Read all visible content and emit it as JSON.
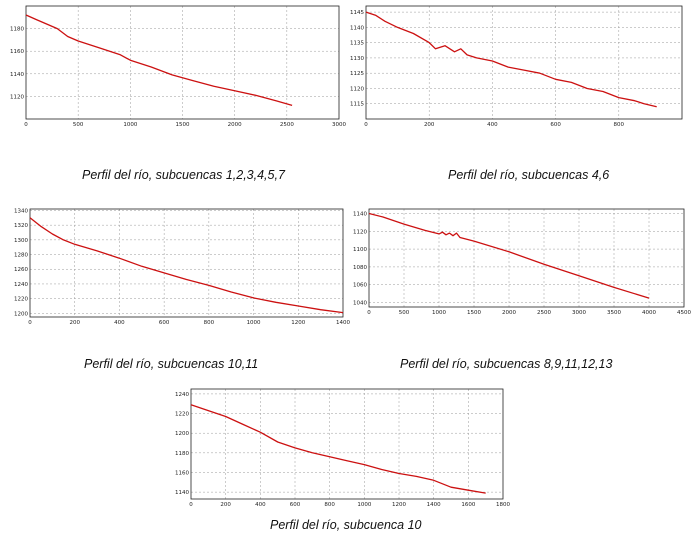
{
  "colors": {
    "line": "#cc1111",
    "grid": "#9a9a9a",
    "frame": "#222222",
    "background": "#ffffff"
  },
  "chart_data": [
    {
      "type": "line",
      "caption": "Perfil del río, subcuencas 1,2,3,4,5,7",
      "xlim": [
        0,
        3000
      ],
      "ylim": [
        1100,
        1200
      ],
      "x_ticks": [
        0,
        500,
        1000,
        1500,
        2000,
        2500,
        3000
      ],
      "y_ticks": [
        1120,
        1140,
        1160,
        1180
      ],
      "grid": true,
      "series": [
        {
          "x": [
            0,
            100,
            200,
            300,
            400,
            500,
            700,
            900,
            1000,
            1200,
            1400,
            1600,
            1800,
            2000,
            2200,
            2400,
            2550
          ],
          "y": [
            1192,
            1188,
            1184,
            1180,
            1173,
            1169,
            1163,
            1157,
            1152,
            1146,
            1139,
            1134,
            1129,
            1125,
            1121,
            1116,
            1112
          ]
        }
      ]
    },
    {
      "type": "line",
      "caption": "Perfil del río, subcuencas 4,6",
      "xlim": [
        0,
        1000
      ],
      "ylim": [
        1110,
        1147
      ],
      "x_ticks": [
        0,
        200,
        400,
        600,
        800
      ],
      "y_ticks": [
        1115,
        1120,
        1125,
        1130,
        1135,
        1140,
        1145
      ],
      "grid": true,
      "series": [
        {
          "x": [
            0,
            30,
            60,
            100,
            150,
            200,
            220,
            250,
            280,
            300,
            320,
            350,
            400,
            450,
            500,
            550,
            600,
            650,
            700,
            750,
            800,
            850,
            880,
            920
          ],
          "y": [
            1145,
            1144,
            1142,
            1140,
            1138,
            1135,
            1133,
            1134,
            1132,
            1133,
            1131,
            1130,
            1129,
            1127,
            1126,
            1125,
            1123,
            1122,
            1120,
            1119,
            1117,
            1116,
            1115,
            1114
          ]
        }
      ]
    },
    {
      "type": "line",
      "caption": "Perfil del río, subcuencas 10,11",
      "xlim": [
        0,
        1400
      ],
      "ylim": [
        1195,
        1342
      ],
      "x_ticks": [
        0,
        200,
        400,
        600,
        800,
        1000,
        1200,
        1400
      ],
      "y_ticks": [
        1200,
        1220,
        1240,
        1260,
        1280,
        1300,
        1320,
        1340
      ],
      "grid": true,
      "series": [
        {
          "x": [
            0,
            50,
            100,
            150,
            200,
            300,
            400,
            500,
            600,
            700,
            800,
            900,
            1000,
            1100,
            1200,
            1300,
            1400
          ],
          "y": [
            1330,
            1318,
            1308,
            1300,
            1294,
            1285,
            1275,
            1264,
            1255,
            1246,
            1238,
            1229,
            1221,
            1215,
            1210,
            1205,
            1201
          ]
        }
      ]
    },
    {
      "type": "line",
      "caption": "Perfil del río, subcuencas 8,9,11,12,13",
      "xlim": [
        0,
        4500
      ],
      "ylim": [
        1035,
        1145
      ],
      "x_ticks": [
        0,
        500,
        1000,
        1500,
        2000,
        2500,
        3000,
        3500,
        4000,
        4500
      ],
      "y_ticks": [
        1040,
        1060,
        1080,
        1100,
        1120,
        1140
      ],
      "grid": true,
      "series": [
        {
          "x": [
            0,
            200,
            500,
            800,
            1000,
            1050,
            1100,
            1150,
            1200,
            1250,
            1300,
            1500,
            2000,
            2500,
            3000,
            3500,
            4000
          ],
          "y": [
            1140,
            1136,
            1128,
            1121,
            1117,
            1119,
            1116,
            1118,
            1115,
            1118,
            1113,
            1109,
            1097,
            1083,
            1070,
            1057,
            1045
          ]
        }
      ]
    },
    {
      "type": "line",
      "caption": "Perfil del río, subcuenca 10",
      "xlim": [
        0,
        1800
      ],
      "ylim": [
        1133,
        1245
      ],
      "x_ticks": [
        0,
        200,
        400,
        600,
        800,
        1000,
        1200,
        1400,
        1600,
        1800
      ],
      "y_ticks": [
        1140,
        1160,
        1180,
        1200,
        1220,
        1240
      ],
      "grid": true,
      "series": [
        {
          "x": [
            0,
            100,
            200,
            300,
            400,
            500,
            600,
            700,
            800,
            900,
            1000,
            1100,
            1200,
            1300,
            1400,
            1500,
            1600,
            1700
          ],
          "y": [
            1229,
            1223,
            1217,
            1209,
            1201,
            1191,
            1185,
            1180,
            1176,
            1172,
            1168,
            1163,
            1159,
            1156,
            1152,
            1145,
            1142,
            1139
          ]
        }
      ]
    }
  ]
}
